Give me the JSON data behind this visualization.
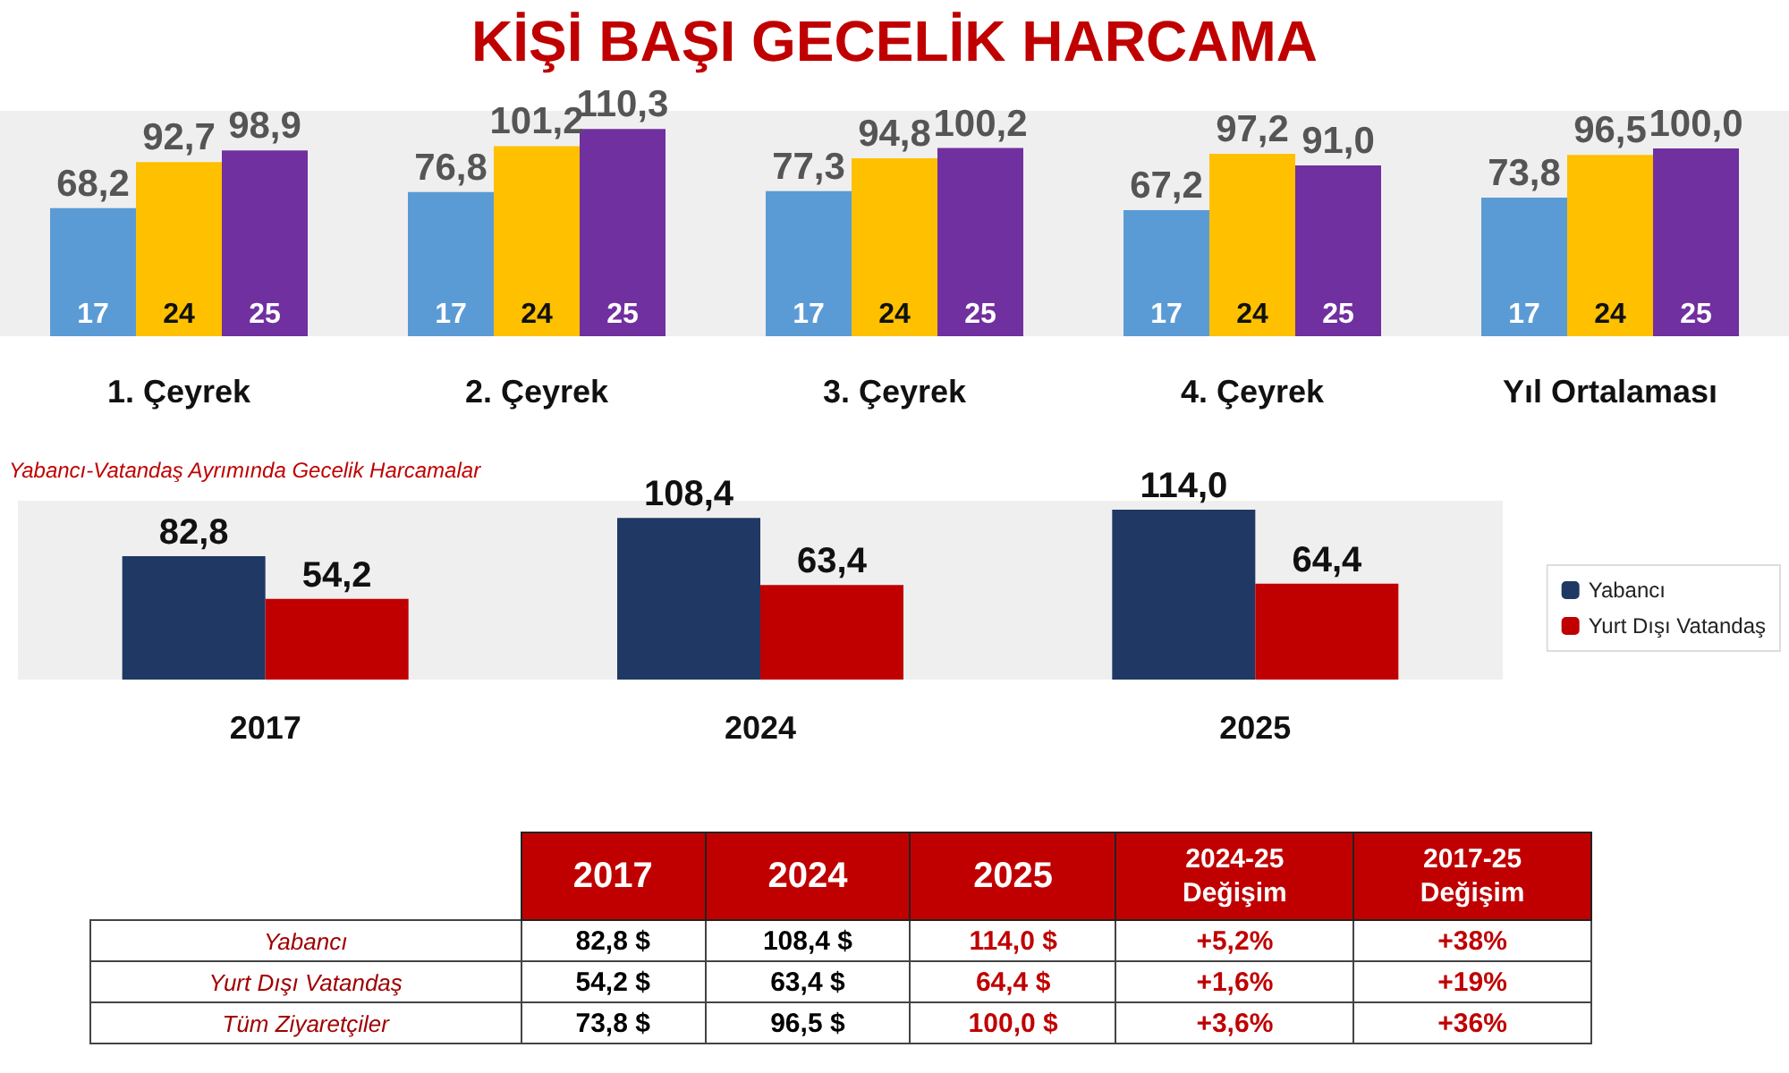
{
  "chart_data": [
    {
      "type": "bar",
      "title": "KİŞİ BAŞI GECELİK HARCAMA",
      "categories": [
        "1. Çeyrek",
        "2. Çeyrek",
        "3. Çeyrek",
        "4. Çeyrek",
        "Yıl Ortalaması"
      ],
      "series": [
        {
          "name": "17",
          "color": "#5b9bd5",
          "values": [
            68.2,
            76.8,
            77.3,
            67.2,
            73.8
          ],
          "value_labels": [
            "68,2",
            "76,8",
            "77,3",
            "67,2",
            "73,8"
          ]
        },
        {
          "name": "24",
          "color": "#ffc000",
          "values": [
            92.7,
            101.2,
            94.8,
            97.2,
            96.5
          ],
          "value_labels": [
            "92,7",
            "101,2",
            "94,8",
            "97,2",
            "96,5"
          ]
        },
        {
          "name": "25",
          "color": "#7030a0",
          "values": [
            98.9,
            110.3,
            100.2,
            91.0,
            100.0
          ],
          "value_labels": [
            "98,9",
            "110,3",
            "100,2",
            "91,0",
            "100,0"
          ]
        }
      ],
      "legend": false,
      "grid": false
    },
    {
      "type": "bar",
      "title": "Yabancı-Vatandaş Ayrımında Gecelik Harcamalar",
      "categories": [
        "2017",
        "2024",
        "2025"
      ],
      "series": [
        {
          "name": "Yabancı",
          "color": "#1f3864",
          "values": [
            82.8,
            108.4,
            114.0
          ],
          "value_labels": [
            "82,8",
            "108,4",
            "114,0"
          ]
        },
        {
          "name": "Yurt Dışı Vatandaş",
          "color": "#c00000",
          "values": [
            54.2,
            63.4,
            64.4
          ],
          "value_labels": [
            "54,2",
            "63,4",
            "64,4"
          ]
        }
      ],
      "legend": "right",
      "grid": false
    },
    {
      "type": "other",
      "categories": [
        "2017",
        "2024",
        "2025",
        "2024-25\nDeğişim",
        "2017-25\nDeğişim"
      ],
      "y_categories": [
        "Yabancı",
        "Yurt Dışı Vatandaş",
        "Tüm Ziyaretçiler"
      ],
      "cell_labels": [
        [
          "82,8 $",
          "108,4 $",
          "114,0 $",
          "+5,2%",
          "+38%"
        ],
        [
          "54,2 $",
          "63,4 $",
          "64,4 $",
          "+1,6%",
          "+19%"
        ],
        [
          "73,8 $",
          "96,5 $",
          "100,0 $",
          "+3,6%",
          "+36%"
        ]
      ]
    }
  ]
}
